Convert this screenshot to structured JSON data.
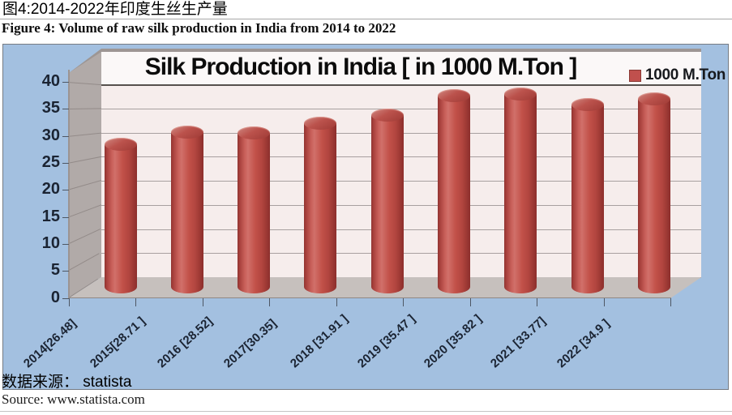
{
  "page": {
    "cn_title": "图4:2014-2022年印度生丝生产量",
    "en_title": "Figure 4: Volume of raw silk production in India from 2014 to 2022",
    "cn_source": "数据来源： statista",
    "en_source": "Source: www.statista.com"
  },
  "chart_data": {
    "type": "bar",
    "style": "3d-cylinder",
    "title": "Silk Production in India [ in 1000 M.Ton ]",
    "legend_label": "1000 M.Ton",
    "legend_position": "top-right",
    "series": [
      {
        "name": "1000 M.Ton",
        "values": [
          26.48,
          28.71,
          28.52,
          30.35,
          31.91,
          35.47,
          35.82,
          33.77,
          34.9
        ]
      }
    ],
    "categories": [
      "2014[26.48]",
      "2015[28.71 ]",
      "2016 [28.52]",
      "2017[30.35]",
      "2018 [31.91 ]",
      "2019 [35.47 ]",
      "2020 [35.82 ]",
      "2021 [33.77]",
      "2022 [34.9 ]"
    ],
    "xlabel": "",
    "ylabel": "",
    "ylim": [
      0,
      40
    ],
    "y_ticks": [
      40,
      35,
      30,
      25,
      20,
      15,
      10,
      5,
      0
    ],
    "grid": true,
    "colors": {
      "bar": "#c0504d",
      "chart_background": "#a3c0e0",
      "back_wall": "#f6edec",
      "side_wall": "#b1aaa8",
      "floor": "#c6c0bd",
      "axis_text": "#1b2433"
    }
  }
}
